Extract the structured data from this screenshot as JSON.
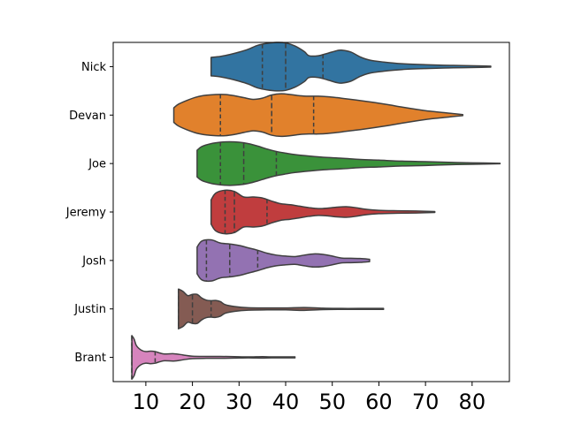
{
  "chart_data": {
    "type": "violin",
    "orientation": "horizontal",
    "inner": "quartile",
    "cut": 0,
    "xlim": [
      3,
      88
    ],
    "xticks": [
      10,
      20,
      30,
      40,
      50,
      60,
      70,
      80
    ],
    "xtick_labels": [
      "10",
      "20",
      "30",
      "40",
      "50",
      "60",
      "70",
      "80"
    ],
    "categories": [
      "Nick",
      "Devan",
      "Joe",
      "Jeremy",
      "Josh",
      "Justin",
      "Brant"
    ],
    "colors": [
      "#3274a1",
      "#e1812c",
      "#3a923a",
      "#c03d3e",
      "#9372b2",
      "#845b53",
      "#d684bd"
    ],
    "edge_color": "#3f3f3f",
    "series": [
      {
        "name": "Nick",
        "min": 24,
        "max": 84,
        "quartiles": [
          35,
          40,
          48
        ],
        "profile": [
          [
            24,
            0.38
          ],
          [
            26,
            0.42
          ],
          [
            28,
            0.5
          ],
          [
            30,
            0.6
          ],
          [
            32,
            0.72
          ],
          [
            34,
            0.88
          ],
          [
            36,
            0.96
          ],
          [
            38,
            1.0
          ],
          [
            40,
            0.98
          ],
          [
            42,
            0.85
          ],
          [
            44,
            0.62
          ],
          [
            45,
            0.45
          ],
          [
            47,
            0.45
          ],
          [
            49,
            0.55
          ],
          [
            51,
            0.66
          ],
          [
            52,
            0.68
          ],
          [
            54,
            0.6
          ],
          [
            56,
            0.4
          ],
          [
            58,
            0.27
          ],
          [
            61,
            0.19
          ],
          [
            65,
            0.12
          ],
          [
            70,
            0.08
          ],
          [
            76,
            0.05
          ],
          [
            82,
            0.03
          ],
          [
            84,
            0.02
          ]
        ]
      },
      {
        "name": "Devan",
        "min": 16,
        "max": 78,
        "quartiles": [
          26,
          37,
          46
        ],
        "profile": [
          [
            16,
            0.3
          ],
          [
            17,
            0.45
          ],
          [
            19,
            0.62
          ],
          [
            21,
            0.75
          ],
          [
            23,
            0.82
          ],
          [
            25,
            0.85
          ],
          [
            27,
            0.85
          ],
          [
            29,
            0.8
          ],
          [
            31,
            0.72
          ],
          [
            33,
            0.65
          ],
          [
            35,
            0.7
          ],
          [
            37,
            0.83
          ],
          [
            39,
            0.88
          ],
          [
            41,
            0.85
          ],
          [
            43,
            0.8
          ],
          [
            45,
            0.78
          ],
          [
            47,
            0.78
          ],
          [
            49,
            0.76
          ],
          [
            51,
            0.72
          ],
          [
            53,
            0.67
          ],
          [
            56,
            0.6
          ],
          [
            59,
            0.52
          ],
          [
            62,
            0.43
          ],
          [
            65,
            0.33
          ],
          [
            68,
            0.24
          ],
          [
            71,
            0.16
          ],
          [
            74,
            0.1
          ],
          [
            76,
            0.06
          ],
          [
            78,
            0.02
          ]
        ]
      },
      {
        "name": "Joe",
        "min": 21,
        "max": 86,
        "quartiles": [
          26,
          31,
          38
        ],
        "profile": [
          [
            21,
            0.55
          ],
          [
            22,
            0.7
          ],
          [
            24,
            0.82
          ],
          [
            26,
            0.88
          ],
          [
            28,
            0.9
          ],
          [
            30,
            0.88
          ],
          [
            32,
            0.82
          ],
          [
            34,
            0.72
          ],
          [
            36,
            0.6
          ],
          [
            38,
            0.5
          ],
          [
            40,
            0.43
          ],
          [
            42,
            0.37
          ],
          [
            45,
            0.31
          ],
          [
            48,
            0.26
          ],
          [
            52,
            0.22
          ],
          [
            56,
            0.17
          ],
          [
            60,
            0.14
          ],
          [
            65,
            0.1
          ],
          [
            70,
            0.08
          ],
          [
            75,
            0.05
          ],
          [
            80,
            0.03
          ],
          [
            86,
            0.01
          ]
        ]
      },
      {
        "name": "Jeremy",
        "min": 24,
        "max": 72,
        "quartiles": [
          27,
          29,
          36
        ],
        "profile": [
          [
            24,
            0.5
          ],
          [
            25,
            0.78
          ],
          [
            27,
            0.9
          ],
          [
            29,
            0.85
          ],
          [
            31,
            0.62
          ],
          [
            33,
            0.62
          ],
          [
            35,
            0.58
          ],
          [
            37,
            0.45
          ],
          [
            39,
            0.34
          ],
          [
            41,
            0.3
          ],
          [
            43,
            0.24
          ],
          [
            45,
            0.18
          ],
          [
            47,
            0.14
          ],
          [
            49,
            0.16
          ],
          [
            51,
            0.2
          ],
          [
            53,
            0.22
          ],
          [
            55,
            0.18
          ],
          [
            57,
            0.12
          ],
          [
            60,
            0.07
          ],
          [
            64,
            0.05
          ],
          [
            68,
            0.04
          ],
          [
            72,
            0.02
          ]
        ]
      },
      {
        "name": "Josh",
        "min": 21,
        "max": 58,
        "quartiles": [
          23,
          28,
          34
        ],
        "profile": [
          [
            21,
            0.55
          ],
          [
            22,
            0.8
          ],
          [
            24,
            0.85
          ],
          [
            26,
            0.72
          ],
          [
            28,
            0.68
          ],
          [
            30,
            0.62
          ],
          [
            32,
            0.52
          ],
          [
            34,
            0.42
          ],
          [
            36,
            0.3
          ],
          [
            38,
            0.22
          ],
          [
            40,
            0.18
          ],
          [
            42,
            0.16
          ],
          [
            44,
            0.22
          ],
          [
            46,
            0.27
          ],
          [
            48,
            0.25
          ],
          [
            50,
            0.18
          ],
          [
            52,
            0.1
          ],
          [
            54,
            0.09
          ],
          [
            56,
            0.08
          ],
          [
            58,
            0.05
          ]
        ]
      },
      {
        "name": "Justin",
        "min": 17,
        "max": 61,
        "quartiles": [
          17,
          20,
          24
        ],
        "profile": [
          [
            17,
            0.82
          ],
          [
            18,
            0.72
          ],
          [
            19,
            0.55
          ],
          [
            20,
            0.6
          ],
          [
            21,
            0.6
          ],
          [
            22,
            0.45
          ],
          [
            23,
            0.36
          ],
          [
            24,
            0.34
          ],
          [
            25,
            0.35
          ],
          [
            26,
            0.3
          ],
          [
            27,
            0.18
          ],
          [
            29,
            0.1
          ],
          [
            32,
            0.05
          ],
          [
            36,
            0.04
          ],
          [
            40,
            0.04
          ],
          [
            44,
            0.06
          ],
          [
            48,
            0.03
          ],
          [
            52,
            0.02
          ],
          [
            56,
            0.02
          ],
          [
            61,
            0.02
          ]
        ]
      },
      {
        "name": "Brant",
        "min": 7,
        "max": 42,
        "quartiles": [
          7,
          7,
          12
        ],
        "profile": [
          [
            7,
            0.9
          ],
          [
            7.5,
            0.75
          ],
          [
            8,
            0.48
          ],
          [
            9,
            0.3
          ],
          [
            10,
            0.24
          ],
          [
            11,
            0.26
          ],
          [
            12,
            0.24
          ],
          [
            13,
            0.18
          ],
          [
            14,
            0.14
          ],
          [
            16,
            0.15
          ],
          [
            18,
            0.1
          ],
          [
            20,
            0.05
          ],
          [
            23,
            0.04
          ],
          [
            26,
            0.04
          ],
          [
            29,
            0.03
          ],
          [
            32,
            0.02
          ],
          [
            35,
            0.03
          ],
          [
            37,
            0.02
          ],
          [
            42,
            0.02
          ]
        ]
      }
    ]
  }
}
